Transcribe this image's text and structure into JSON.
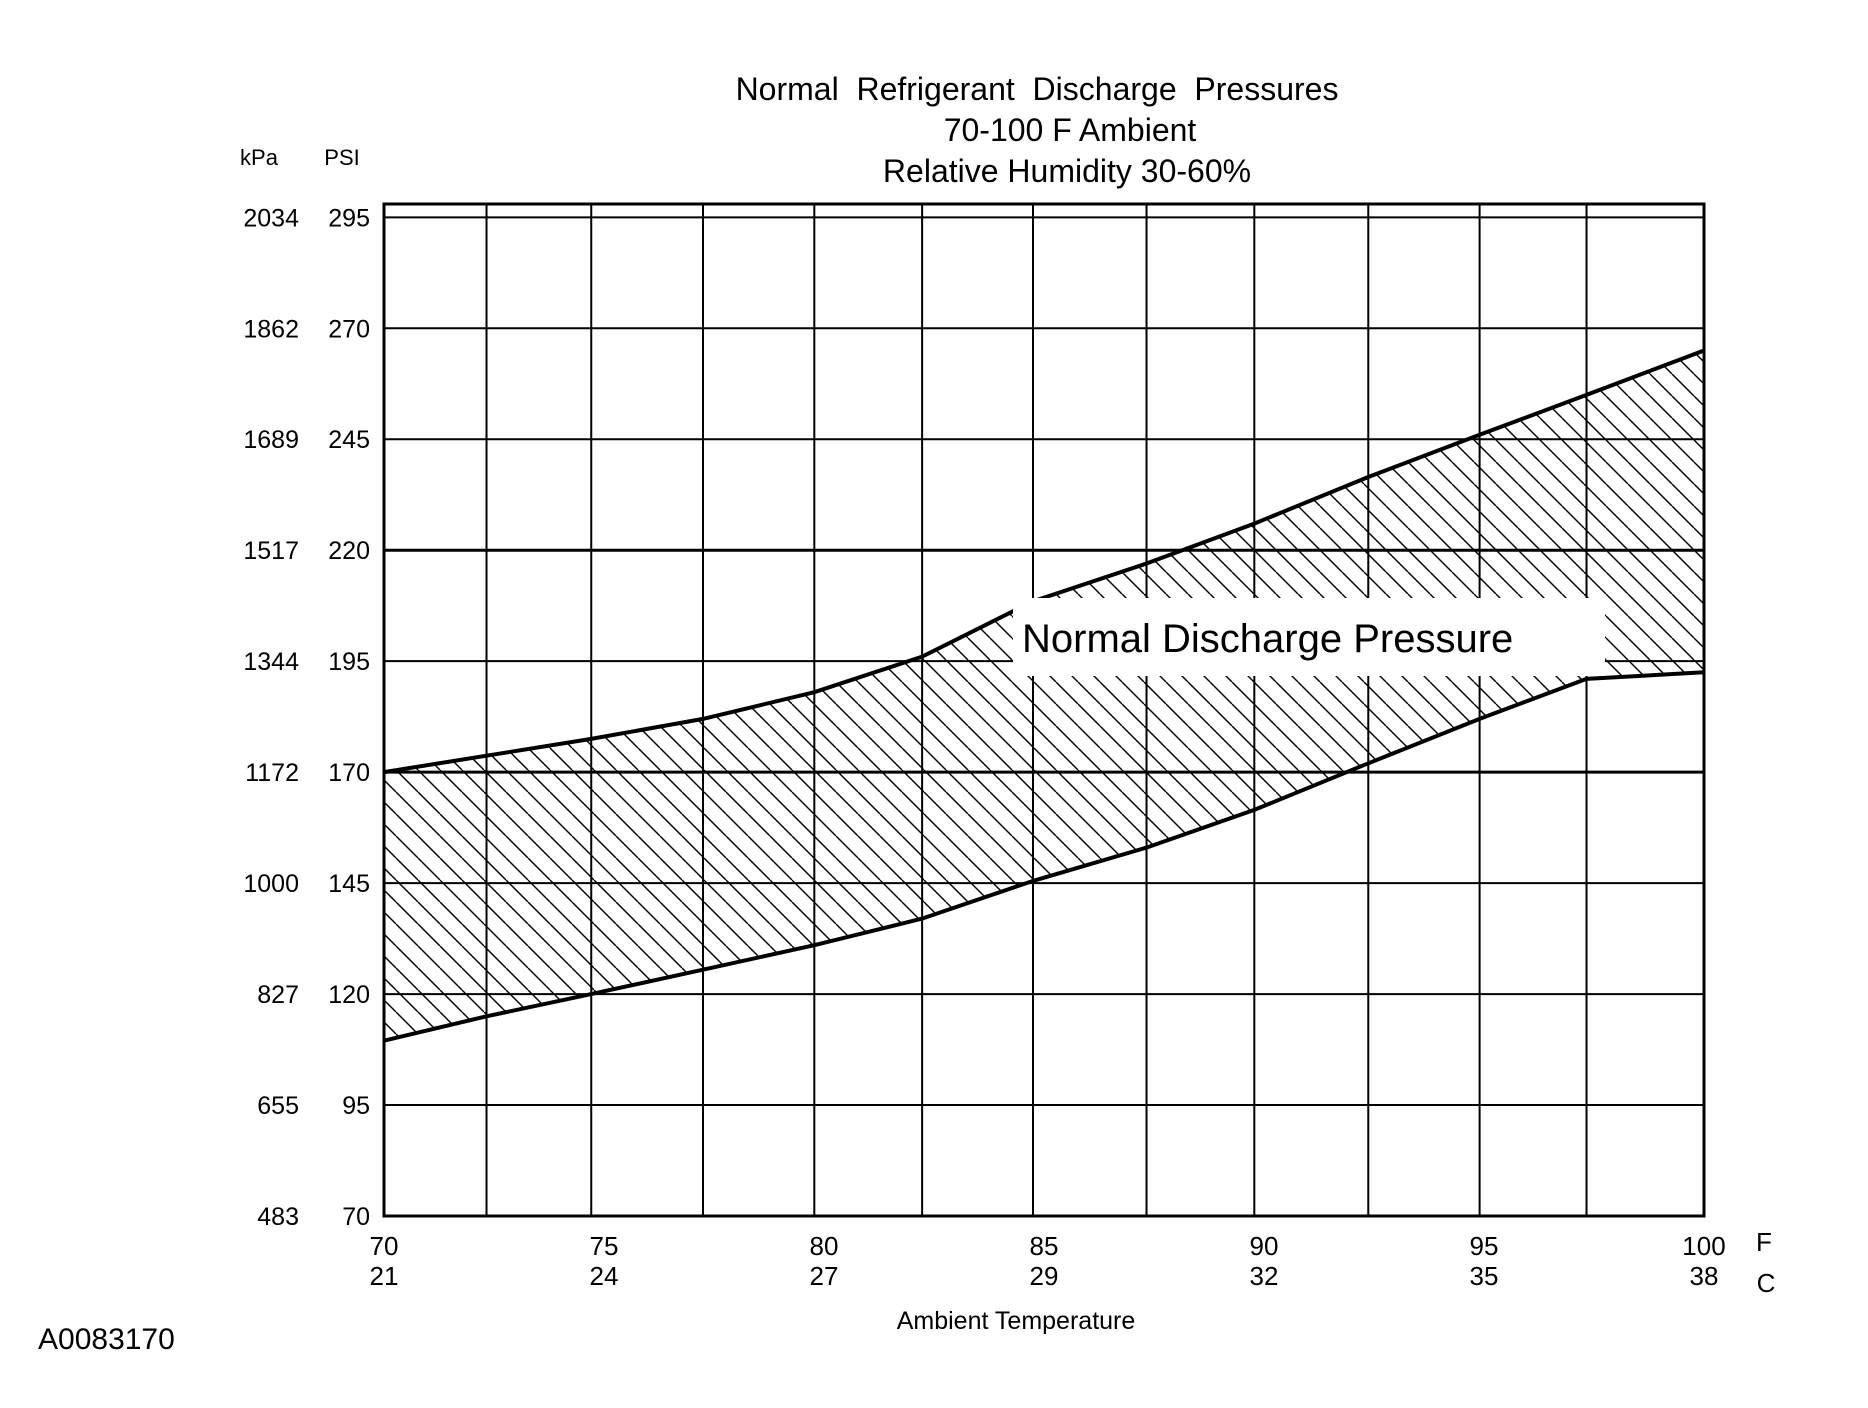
{
  "chart_data": {
    "type": "area",
    "title_lines": [
      "Normal  Refrigerant  Discharge  Pressures",
      "70-100 F Ambient",
      "Relative Humidity 30-60%"
    ],
    "xlabel": "Ambient Temperature",
    "x_unit_primary": "F",
    "x_unit_secondary": "C",
    "y_unit_primary": "PSI",
    "y_unit_secondary": "kPa",
    "xlim": [
      70,
      100
    ],
    "ylim": [
      70,
      298
    ],
    "x_ticks_f": [
      "70",
      "75",
      "80",
      "85",
      "90",
      "95",
      "100"
    ],
    "x_ticks_c": [
      "21",
      "24",
      "27",
      "29",
      "32",
      "35",
      "38"
    ],
    "y_ticks_psi": [
      "70",
      "95",
      "120",
      "145",
      "170",
      "195",
      "220",
      "245",
      "270",
      "295"
    ],
    "y_ticks_kpa": [
      "483",
      "655",
      "827",
      "1000",
      "1172",
      "1344",
      "1517",
      "1689",
      "1862",
      "2034"
    ],
    "grid": true,
    "grid_x": [
      70,
      72.33,
      74.71,
      77.25,
      79.78,
      82.23,
      84.75,
      87.33,
      89.78,
      92.37,
      94.9,
      97.33,
      100
    ],
    "grid_y": [
      70,
      95,
      120,
      145,
      170,
      195,
      220,
      245,
      270,
      295
    ],
    "band_label": "Normal Discharge Pressure",
    "series": [
      {
        "name": "upper",
        "x": [
          70,
          72.33,
          74.71,
          77.25,
          79.78,
          82.23,
          84.75,
          87.33,
          89.78,
          92.37,
          94.9,
          97.33,
          100
        ],
        "y": [
          170,
          173.7,
          177.5,
          182,
          188,
          196,
          208.5,
          217,
          226,
          236.5,
          246,
          255,
          265
        ]
      },
      {
        "name": "lower",
        "x": [
          70,
          72.33,
          74.71,
          77.25,
          79.78,
          82.23,
          84.75,
          87.33,
          89.78,
          92.37,
          94.9,
          97.33,
          100
        ],
        "y": [
          109.5,
          115,
          120,
          125.5,
          131,
          137,
          145.5,
          153,
          161.5,
          172,
          182,
          191,
          192.5
        ]
      }
    ],
    "figure_id": "A0083170"
  }
}
